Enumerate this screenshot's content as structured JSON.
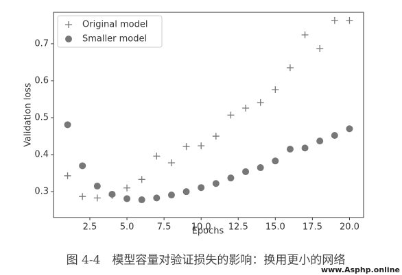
{
  "chart_data": {
    "type": "scatter",
    "x_label": "Epochs",
    "y_label": "Validation loss",
    "x": [
      1,
      2,
      3,
      4,
      5,
      6,
      7,
      8,
      9,
      10,
      11,
      12,
      13,
      14,
      15,
      16,
      17,
      18,
      19,
      20
    ],
    "series": [
      {
        "name": "Original model",
        "color": "#777777",
        "marker": "plus",
        "values": [
          0.343,
          0.287,
          0.283,
          0.29,
          0.31,
          0.333,
          0.396,
          0.378,
          0.422,
          0.424,
          0.45,
          0.507,
          0.526,
          0.541,
          0.576,
          0.635,
          0.724,
          0.687,
          0.763,
          0.763
        ]
      },
      {
        "name": "Smaller model",
        "color": "#777777",
        "marker": "circle",
        "values": [
          0.481,
          0.37,
          0.315,
          0.293,
          0.281,
          0.278,
          0.283,
          0.291,
          0.3,
          0.311,
          0.322,
          0.337,
          0.354,
          0.365,
          0.383,
          0.415,
          0.418,
          0.437,
          0.452,
          0.47
        ]
      }
    ],
    "xlim": [
      0.05,
      20.95
    ],
    "xticks": [
      {
        "value": 2.5,
        "label": "2.5"
      },
      {
        "value": 5,
        "label": "5.0"
      },
      {
        "value": 7.5,
        "label": "7.5"
      },
      {
        "value": 10,
        "label": "10.0"
      },
      {
        "value": 12.5,
        "label": "12.5"
      },
      {
        "value": 15,
        "label": "15.0"
      },
      {
        "value": 17.5,
        "label": "17.5"
      },
      {
        "value": 20,
        "label": "20.0"
      }
    ],
    "ylim": [
      0.23,
      0.785
    ],
    "yticks": [
      0.3,
      0.4,
      0.5,
      0.6,
      0.7
    ],
    "legend": "upper left",
    "caption": "图 4-4　模型容量对验证损失的影响：换用更小的网络",
    "watermark": "www.Asphp.online"
  }
}
